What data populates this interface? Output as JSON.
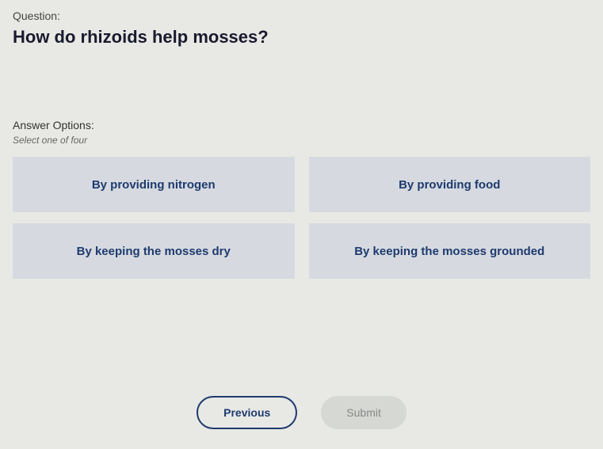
{
  "question": {
    "label": "Question:",
    "text": "How do rhizoids help mosses?"
  },
  "answer": {
    "label": "Answer Options:",
    "instruction": "Select one of four",
    "options": [
      "By providing nitrogen",
      "By providing food",
      "By keeping the mosses dry",
      "By keeping the mosses grounded"
    ]
  },
  "nav": {
    "previous": "Previous",
    "submit": "Submit"
  },
  "colors": {
    "background": "#e8e9e5",
    "option_bg": "#d6dae0",
    "option_text": "#1e3a6e",
    "previous_border": "#1e3a6e",
    "submit_bg": "#d6d8d4",
    "submit_text": "#888"
  }
}
